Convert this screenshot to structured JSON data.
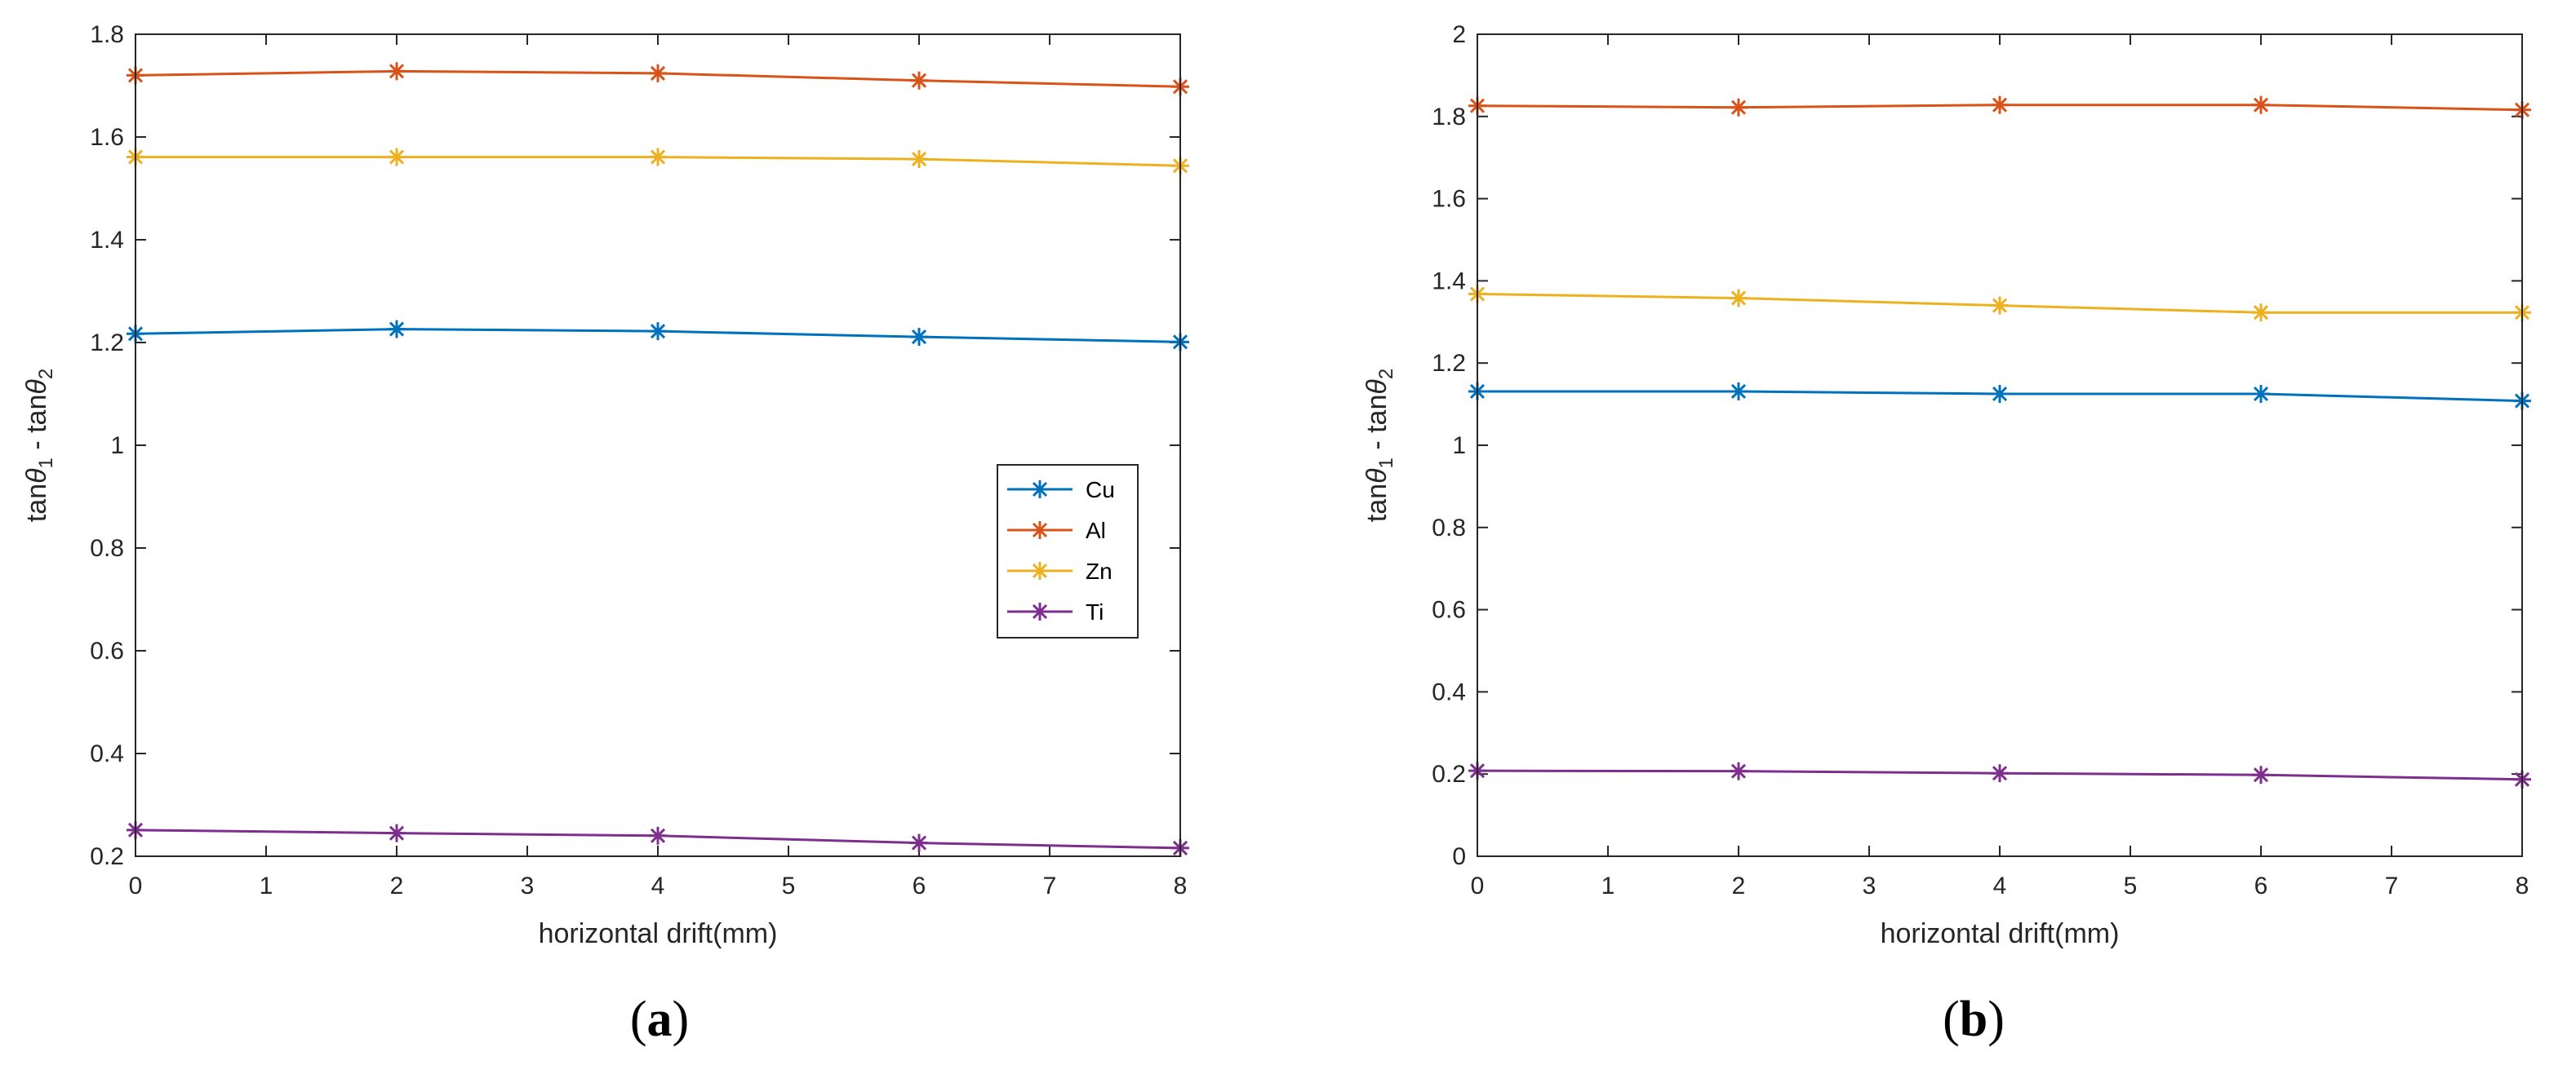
{
  "chart_data": [
    {
      "panel": "a",
      "type": "line",
      "panel_label": "(a)",
      "bold_letter": "a",
      "xlabel": "horizontal drift(mm)",
      "ylabel_parts": {
        "main": "tan",
        "theta": "θ",
        "sub1": "1",
        "sep": " - tan",
        "sub2": "2"
      },
      "x": [
        0,
        2,
        4,
        6,
        8
      ],
      "xlim": [
        0,
        8
      ],
      "ylim": [
        0.2,
        1.8
      ],
      "xticks": [
        "0",
        "1",
        "2",
        "3",
        "4",
        "5",
        "6",
        "7",
        "8"
      ],
      "yticks": [
        "0.2",
        "0.4",
        "0.6",
        "0.8",
        "1",
        "1.2",
        "1.4",
        "1.6",
        "1.8"
      ],
      "series": [
        {
          "name": "Cu",
          "color": "#0072BD",
          "values": [
            1.217,
            1.226,
            1.222,
            1.211,
            1.201
          ]
        },
        {
          "name": "Al",
          "color": "#D95319",
          "values": [
            1.72,
            1.728,
            1.724,
            1.71,
            1.698
          ]
        },
        {
          "name": "Zn",
          "color": "#EDB120",
          "values": [
            1.561,
            1.561,
            1.561,
            1.557,
            1.544
          ]
        },
        {
          "name": "Ti",
          "color": "#7E2F8E",
          "values": [
            0.251,
            0.245,
            0.24,
            0.226,
            0.216
          ]
        }
      ],
      "legend": [
        "Cu",
        "Al",
        "Zn",
        "Ti"
      ],
      "legend_position": "right-middle"
    },
    {
      "panel": "b",
      "type": "line",
      "panel_label": "(b)",
      "bold_letter": "b",
      "xlabel": "horizontal drift(mm)",
      "ylabel_parts": {
        "main": "tan",
        "theta": "θ",
        "sub1": "1",
        "sep": " - tan",
        "sub2": "2"
      },
      "x": [
        0,
        2,
        4,
        6,
        8
      ],
      "xlim": [
        0,
        8
      ],
      "ylim": [
        0,
        2
      ],
      "xticks": [
        "0",
        "1",
        "2",
        "3",
        "4",
        "5",
        "6",
        "7",
        "8"
      ],
      "yticks": [
        "0",
        "0.2",
        "0.4",
        "0.6",
        "0.8",
        "1",
        "1.2",
        "1.4",
        "1.6",
        "1.8",
        "2"
      ],
      "series": [
        {
          "name": "Cu",
          "color": "#0072BD",
          "values": [
            1.131,
            1.131,
            1.125,
            1.125,
            1.108
          ]
        },
        {
          "name": "Al",
          "color": "#D95319",
          "values": [
            1.826,
            1.822,
            1.828,
            1.828,
            1.816
          ]
        },
        {
          "name": "Zn",
          "color": "#EDB120",
          "values": [
            1.368,
            1.358,
            1.34,
            1.323,
            1.323
          ]
        },
        {
          "name": "Ti",
          "color": "#7E2F8E",
          "values": [
            0.208,
            0.207,
            0.202,
            0.198,
            0.187
          ]
        }
      ]
    }
  ]
}
